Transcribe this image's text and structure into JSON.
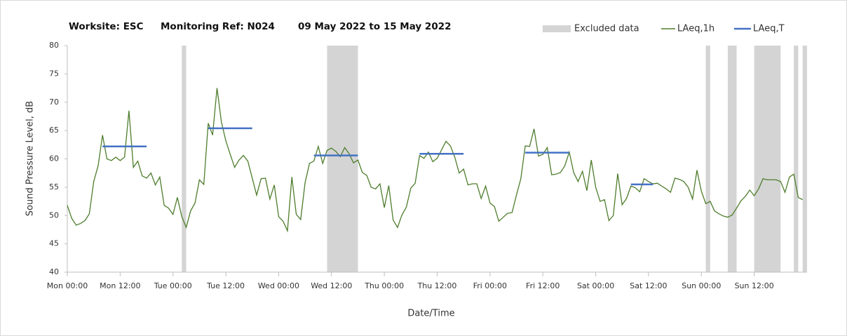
{
  "chart_data": {
    "type": "line",
    "title": [
      "Worksite: ESC",
      "Monitoring Ref: N024",
      "09 May 2022 to 15 May 2022"
    ],
    "x_label": "Date/Time",
    "y_label": "Sound Pressure Level, dB",
    "xlim": [
      0,
      168
    ],
    "ylim": [
      40,
      80
    ],
    "yticks": [
      40,
      45,
      50,
      55,
      60,
      65,
      70,
      75,
      80
    ],
    "xticks": [
      {
        "value": 0,
        "label": "Mon 00:00"
      },
      {
        "value": 12,
        "label": "Mon 12:00"
      },
      {
        "value": 24,
        "label": "Tue 00:00"
      },
      {
        "value": 36,
        "label": "Tue 12:00"
      },
      {
        "value": 48,
        "label": "Wed 00:00"
      },
      {
        "value": 60,
        "label": "Wed 12:00"
      },
      {
        "value": 72,
        "label": "Thu 00:00"
      },
      {
        "value": 84,
        "label": "Thu 12:00"
      },
      {
        "value": 96,
        "label": "Fri 00:00"
      },
      {
        "value": 108,
        "label": "Fri 12:00"
      },
      {
        "value": 120,
        "label": "Sat 00:00"
      },
      {
        "value": 132,
        "label": "Sat 12:00"
      },
      {
        "value": 144,
        "label": "Sun 00:00"
      },
      {
        "value": 156,
        "label": "Sun 12:00"
      }
    ],
    "excluded": {
      "name": "Excluded data",
      "color": "#d4d4d4",
      "ranges": [
        [
          26,
          27
        ],
        [
          59,
          66
        ],
        [
          145,
          146
        ],
        [
          150,
          152
        ],
        [
          156,
          162
        ],
        [
          165,
          166
        ],
        [
          167,
          168
        ]
      ]
    },
    "series": [
      {
        "name": "LAeq,1h",
        "color": "#4e7d2c",
        "x": [
          0,
          1,
          2,
          3,
          4,
          5,
          6,
          7,
          8,
          9,
          10,
          11,
          12,
          13,
          14,
          15,
          16,
          17,
          18,
          19,
          20,
          21,
          22,
          23,
          24,
          25,
          26,
          27,
          28,
          29,
          30,
          31,
          32,
          33,
          34,
          35,
          36,
          37,
          38,
          39,
          40,
          41,
          42,
          43,
          44,
          45,
          46,
          47,
          48,
          49,
          50,
          51,
          52,
          53,
          54,
          55,
          56,
          57,
          58,
          59,
          60,
          61,
          62,
          63,
          64,
          65,
          66,
          67,
          68,
          69,
          70,
          71,
          72,
          73,
          74,
          75,
          76,
          77,
          78,
          79,
          80,
          81,
          82,
          83,
          84,
          85,
          86,
          87,
          88,
          89,
          90,
          91,
          92,
          93,
          94,
          95,
          96,
          97,
          98,
          99,
          100,
          101,
          102,
          103,
          104,
          105,
          106,
          107,
          108,
          109,
          110,
          111,
          112,
          113,
          114,
          115,
          116,
          117,
          118,
          119,
          120,
          121,
          122,
          123,
          124,
          125,
          126,
          127,
          128,
          129,
          130,
          131,
          132,
          133,
          134,
          135,
          136,
          137,
          138,
          139,
          140,
          141,
          142,
          143,
          144,
          145,
          146,
          147,
          148,
          149,
          150,
          151,
          152,
          153,
          154,
          155,
          156,
          157,
          158,
          159,
          160,
          161,
          162,
          163,
          164,
          165,
          166,
          167
        ],
        "values": [
          51.8,
          49.5,
          48.3,
          48.6,
          49.1,
          50.3,
          56,
          58.8,
          64.2,
          60,
          59.7,
          60.3,
          59.7,
          60.3,
          68.5,
          58.5,
          59.6,
          57,
          56.6,
          57.5,
          55.4,
          56.8,
          51.8,
          51.3,
          50.2,
          53.2,
          49.8,
          47.9,
          50.8,
          52.2,
          56.3,
          55.5,
          66.3,
          64.2,
          72.5,
          66.5,
          63.2,
          60.8,
          58.5,
          59.8,
          60.6,
          59.6,
          56.6,
          53.6,
          56.5,
          56.6,
          52.9,
          55.4,
          49.8,
          49,
          47.3,
          56.8,
          50.2,
          49.3,
          55.8,
          59.2,
          59.6,
          62.2,
          59.2,
          61.5,
          61.9,
          61.3,
          60.4,
          62,
          60.9,
          59.3,
          59.8,
          57.6,
          57.1,
          55,
          54.7,
          55.6,
          51.4,
          55.3,
          49.2,
          47.9,
          50.1,
          51.5,
          54.8,
          55.7,
          60.6,
          60.1,
          61.2,
          59.5,
          60.1,
          61.6,
          63.1,
          62.3,
          60.3,
          57.5,
          58.2,
          55.4,
          55.6,
          55.6,
          53,
          55.2,
          52.2,
          51.6,
          49,
          49.7,
          50.4,
          50.5,
          53.6,
          56.5,
          62.3,
          62.2,
          65.3,
          60.5,
          60.8,
          62,
          57.2,
          57.3,
          57.6,
          58.8,
          61.2,
          57.6,
          56,
          57.8,
          54.4,
          59.8,
          55,
          52.5,
          52.8,
          49.1,
          50,
          57.4,
          51.9,
          53,
          55.2,
          54.9,
          54.2,
          56.5,
          56,
          55.6,
          55.7,
          55.2,
          54.7,
          54.1,
          56.6,
          56.4,
          56,
          55,
          52.9,
          58,
          54.3,
          52.1,
          52.5,
          50.8,
          50.3,
          49.9,
          49.7,
          50.1,
          51.3,
          52.6,
          53.4,
          54.5,
          53.5,
          54.7,
          56.5,
          56.3,
          56.3,
          56.3,
          56,
          54.1,
          56.8,
          57.3,
          53.2,
          52.8
        ]
      },
      {
        "name": "LAeq,T",
        "color": "#4472c4",
        "segments": [
          {
            "x": [
              8,
              18
            ],
            "value": 62.2
          },
          {
            "x": [
              32,
              42
            ],
            "value": 65.4
          },
          {
            "x": [
              56,
              66
            ],
            "value": 60.6
          },
          {
            "x": [
              80,
              90
            ],
            "value": 60.9
          },
          {
            "x": [
              104,
              114
            ],
            "value": 61.1
          },
          {
            "x": [
              128,
              133
            ],
            "value": 55.5
          }
        ]
      }
    ]
  }
}
